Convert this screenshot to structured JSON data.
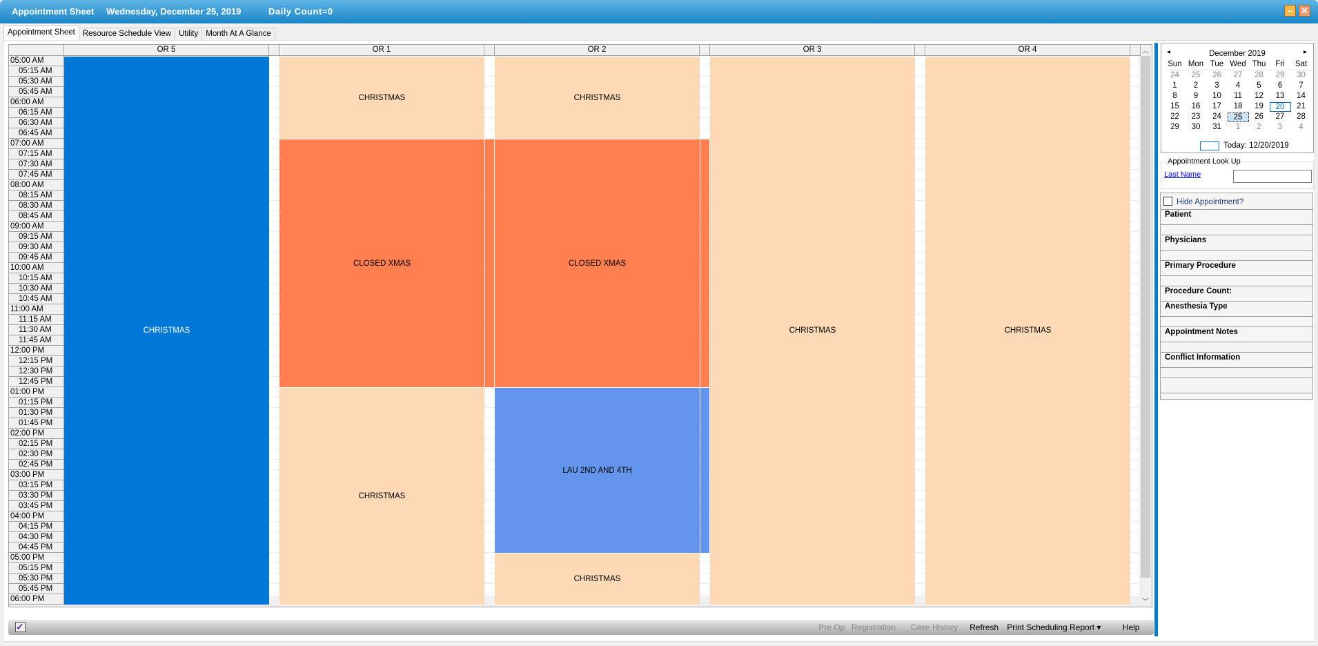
{
  "title": {
    "app": "Appointment Sheet",
    "date": "Wednesday, December 25, 2019",
    "count": "Daily Count=0",
    "minimize": "–",
    "close": "✕"
  },
  "tabs": [
    "Appointment Sheet",
    "Resource Schedule View",
    "Utility",
    "Month At A Glance"
  ],
  "active_tab": 0,
  "columns": [
    "OR 5",
    "OR 1",
    "OR 2",
    "OR 3",
    "OR 4"
  ],
  "times": [
    "05:00 AM",
    "05:15 AM",
    "05:30 AM",
    "05:45 AM",
    "06:00 AM",
    "06:15 AM",
    "06:30 AM",
    "06:45 AM",
    "07:00 AM",
    "07:15 AM",
    "07:30 AM",
    "07:45 AM",
    "08:00 AM",
    "08:15 AM",
    "08:30 AM",
    "08:45 AM",
    "09:00 AM",
    "09:15 AM",
    "09:30 AM",
    "09:45 AM",
    "10:00 AM",
    "10:15 AM",
    "10:30 AM",
    "10:45 AM",
    "11:00 AM",
    "11:15 AM",
    "11:30 AM",
    "11:45 AM",
    "12:00 PM",
    "12:15 PM",
    "12:30 PM",
    "12:45 PM",
    "01:00 PM",
    "01:15 PM",
    "01:30 PM",
    "01:45 PM",
    "02:00 PM",
    "02:15 PM",
    "02:30 PM",
    "02:45 PM",
    "03:00 PM",
    "03:15 PM",
    "03:30 PM",
    "03:45 PM",
    "04:00 PM",
    "04:15 PM",
    "04:30 PM",
    "04:45 PM",
    "05:00 PM",
    "05:15 PM",
    "05:30 PM",
    "05:45 PM",
    "06:00 PM"
  ],
  "colors": {
    "christmas": "#fdd9b5",
    "closed": "#ff7f50",
    "lau": "#6495ed",
    "or5": "#0078d7"
  },
  "blocks": [
    {
      "column": "OR 5",
      "label": "CHRISTMAS",
      "start": "05:00 AM",
      "end": "06:15 PM",
      "color": "or5",
      "text_color": "#ffffff",
      "covers_gap": false
    },
    {
      "column": "OR 1",
      "label": "CHRISTMAS",
      "start": "05:00 AM",
      "end": "07:00 AM",
      "color": "christmas",
      "covers_gap": false
    },
    {
      "column": "OR 1",
      "label": "CLOSED XMAS",
      "start": "07:00 AM",
      "end": "01:00 PM",
      "color": "closed",
      "covers_gap": true
    },
    {
      "column": "OR 1",
      "label": "CHRISTMAS",
      "start": "01:00 PM",
      "end": "06:15 PM",
      "color": "christmas",
      "covers_gap": false
    },
    {
      "column": "OR 2",
      "label": "CHRISTMAS",
      "start": "05:00 AM",
      "end": "07:00 AM",
      "color": "christmas",
      "covers_gap": false
    },
    {
      "column": "OR 2",
      "label": "CLOSED XMAS",
      "start": "07:00 AM",
      "end": "01:00 PM",
      "color": "closed",
      "covers_gap": true
    },
    {
      "column": "OR 2",
      "label": "LAU 2ND AND 4TH",
      "start": "01:00 PM",
      "end": "05:00 PM",
      "color": "lau",
      "covers_gap": true
    },
    {
      "column": "OR 2",
      "label": "CHRISTMAS",
      "start": "05:00 PM",
      "end": "06:15 PM",
      "color": "christmas",
      "covers_gap": false
    },
    {
      "column": "OR 3",
      "label": "CHRISTMAS",
      "start": "05:00 AM",
      "end": "06:15 PM",
      "color": "christmas",
      "covers_gap": false
    },
    {
      "column": "OR 4",
      "label": "CHRISTMAS",
      "start": "05:00 AM",
      "end": "06:15 PM",
      "color": "christmas",
      "covers_gap": false
    }
  ],
  "toolbar": {
    "items": [
      {
        "label": "Pre Op",
        "enabled": false
      },
      {
        "label": "Registration",
        "enabled": false
      },
      {
        "label": "Case History",
        "enabled": false
      },
      {
        "label": "Refresh",
        "enabled": true
      },
      {
        "label": "Print Scheduling Report ▾",
        "enabled": true
      },
      {
        "label": "Help",
        "enabled": true
      }
    ]
  },
  "calendar": {
    "month": "December 2019",
    "prev": "◂",
    "next": "▸",
    "dows": [
      "Sun",
      "Mon",
      "Tue",
      "Wed",
      "Thu",
      "Fri",
      "Sat"
    ],
    "weeks": [
      [
        "24",
        "25",
        "26",
        "27",
        "28",
        "29",
        "30"
      ],
      [
        "1",
        "2",
        "3",
        "4",
        "5",
        "6",
        "7"
      ],
      [
        "8",
        "9",
        "10",
        "11",
        "12",
        "13",
        "14"
      ],
      [
        "15",
        "16",
        "17",
        "18",
        "19",
        "20",
        "21"
      ],
      [
        "22",
        "23",
        "24",
        "25",
        "26",
        "27",
        "28"
      ],
      [
        "29",
        "30",
        "31",
        "1",
        "2",
        "3",
        "4"
      ]
    ],
    "selected": "25",
    "today": "20",
    "today_label": "Today: 12/20/2019"
  },
  "lookup": {
    "legend": "Appointment Look Up",
    "link": "Last Name",
    "value": ""
  },
  "details": {
    "hide_label": "Hide Appointment?",
    "hide_checked": false,
    "sections": [
      "Patient",
      "Physicians",
      "Primary Procedure",
      "Procedure Count:",
      "Anesthesia Type",
      "Appointment Notes",
      "Conflict Information"
    ]
  }
}
